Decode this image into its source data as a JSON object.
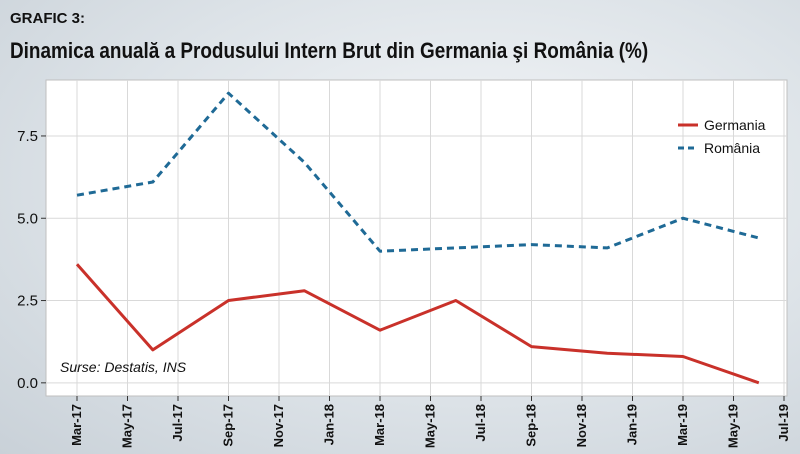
{
  "header": {
    "tag": "GRAFIC 3:",
    "title": "Dinamica anuală a Produsului Intern Brut din Germania şi România (%)"
  },
  "source_note": "Surse: Destatis, INS",
  "colors": {
    "germania": "#c9312a",
    "romania": "#1f6a96",
    "plot_bg": "#ffffff",
    "grid": "#d9d9d9"
  },
  "chart_data": {
    "type": "line",
    "title": "Dinamica anuală a Produsului Intern Brut din Germania şi România (%)",
    "categories": [
      "Mar-17",
      "May-17",
      "Jul-17",
      "Sep-17",
      "Nov-17",
      "Jan-18",
      "Mar-18",
      "May-18",
      "Jul-18",
      "Sep-18",
      "Nov-18",
      "Jan-19",
      "Mar-19",
      "May-19",
      "Jul-19"
    ],
    "x_index_range": [
      0,
      14
    ],
    "ylim": [
      -0.4,
      9.2
    ],
    "yticks": [
      "0.0",
      "2.5",
      "5.0",
      "7.5"
    ],
    "ytick_values": [
      0,
      2.5,
      5.0,
      7.5
    ],
    "grid": true,
    "legend_position": "top-right",
    "series": [
      {
        "name": "Germania",
        "style": "solid",
        "points": [
          [
            0,
            3.6
          ],
          [
            1,
            1.0
          ],
          [
            2,
            2.5
          ],
          [
            3,
            2.8
          ],
          [
            4,
            1.6
          ],
          [
            5,
            2.5
          ],
          [
            6,
            1.1
          ],
          [
            7,
            0.9
          ],
          [
            8,
            0.8
          ],
          [
            9,
            0.0
          ]
        ],
        "x_categories": [
          "Mar-17",
          "Jul-17",
          "Sep-17",
          "Nov-17",
          "Jan-18",
          "May-18",
          "Sep-18",
          "Jan-19",
          "Mar-19",
          "May-19"
        ]
      },
      {
        "name": "România",
        "style": "dashed",
        "points": [
          [
            0,
            5.7
          ],
          [
            1,
            6.1
          ],
          [
            2,
            8.8
          ],
          [
            3,
            6.7
          ],
          [
            4,
            4.0
          ],
          [
            5,
            4.1
          ],
          [
            6,
            4.2
          ],
          [
            7,
            4.1
          ],
          [
            8,
            5.0
          ],
          [
            9,
            4.4
          ]
        ],
        "x_categories": [
          "Mar-17",
          "Jul-17",
          "Sep-17",
          "Nov-17",
          "Jan-18",
          "May-18",
          "Sep-18",
          "Jan-19",
          "Mar-19",
          "May-19"
        ]
      }
    ]
  }
}
